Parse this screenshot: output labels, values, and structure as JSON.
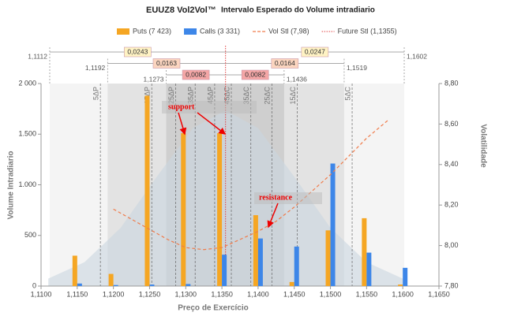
{
  "chart_data": {
    "type": "bar",
    "title": "EUUZ8 Vol2Vol™",
    "subtitle": "Intervalo Esperado do Volume intradiario",
    "x_label": "Preço de Exercício",
    "y_label": "Volume Intradiario",
    "y2_label": "Volatilidade",
    "categories": [
      1.115,
      1.12,
      1.125,
      1.13,
      1.135,
      1.14,
      1.145,
      1.15,
      1.155,
      1.16
    ],
    "series": [
      {
        "name": "Puts (7 423)",
        "color": "#f5a623",
        "values": [
          300,
          120,
          1880,
          1510,
          1510,
          700,
          40,
          550,
          670,
          15
        ]
      },
      {
        "name": "Calls (3 331)",
        "color": "#3d86e8",
        "values": [
          25,
          10,
          15,
          20,
          310,
          470,
          390,
          1210,
          330,
          180
        ]
      }
    ],
    "vol": {
      "name": "Vol Stl (7,98)",
      "color": "#f07b4a",
      "axis": "y2",
      "x": [
        1.12,
        1.1225,
        1.125,
        1.1275,
        1.13,
        1.1325,
        1.135,
        1.1375,
        1.14,
        1.1425,
        1.145,
        1.1475,
        1.15,
        1.1525,
        1.155,
        1.158
      ],
      "values": [
        8.18,
        8.13,
        8.08,
        8.03,
        7.99,
        7.98,
        7.99,
        8.03,
        8.07,
        8.12,
        8.19,
        8.27,
        8.35,
        8.44,
        8.53,
        8.62
      ]
    },
    "future": {
      "name": "Future Stl (1,1355)",
      "color": "#e04040",
      "value": 1.1355
    },
    "distribution": {
      "color": "#c9d6e0",
      "x": [
        1.111,
        1.116,
        1.121,
        1.126,
        1.131,
        1.1355,
        1.14,
        1.145,
        1.15,
        1.155,
        1.16
      ],
      "values": [
        74,
        235,
        575,
        1080,
        1560,
        1735,
        1560,
        1080,
        575,
        235,
        74
      ]
    },
    "ranges": [
      {
        "color": "#fff3c4",
        "low": {
          "value": 1.1112,
          "label": "1,1112"
        },
        "high": {
          "value": 1.1602,
          "label": "1,1602"
        },
        "left": {
          "value": 0.0243,
          "label": "0,0243"
        },
        "right": {
          "value": 0.0247,
          "label": "0,0247"
        }
      },
      {
        "color": "#fbd5bf",
        "low": {
          "value": 1.1192,
          "label": "1,1192"
        },
        "high": {
          "value": 1.1519,
          "label": "1,1519"
        },
        "left": {
          "value": 0.0163,
          "label": "0,0163"
        },
        "right": {
          "value": 0.0164,
          "label": "0,0164"
        }
      },
      {
        "color": "#f4a6a6",
        "low": {
          "value": 1.1273,
          "label": "1,1273"
        },
        "high": {
          "value": 1.1436,
          "label": "1,1436"
        },
        "left": {
          "value": 0.0082,
          "label": "0,0082"
        },
        "right": {
          "value": 0.0082,
          "label": "0,0082"
        }
      }
    ],
    "deltas": [
      {
        "label": "5ΔP",
        "x": 1.1182
      },
      {
        "label": "15ΔP",
        "x": 1.1253
      },
      {
        "label": "25ΔP",
        "x": 1.1286
      },
      {
        "label": "35ΔP",
        "x": 1.1313
      },
      {
        "label": "45ΔP",
        "x": 1.134
      },
      {
        "label": "45ΔC",
        "x": 1.1363
      },
      {
        "label": "35ΔC",
        "x": 1.139
      },
      {
        "label": "25ΔC",
        "x": 1.1419
      },
      {
        "label": "15ΔC",
        "x": 1.1454
      },
      {
        "label": "5ΔC",
        "x": 1.153
      }
    ],
    "annotations": [
      "support",
      "resistance"
    ],
    "xlim": [
      1.11,
      1.165
    ],
    "xticks": [
      {
        "value": 1.11,
        "label": "1,1100"
      },
      {
        "value": 1.115,
        "label": "1,1150"
      },
      {
        "value": 1.12,
        "label": "1,1200"
      },
      {
        "value": 1.125,
        "label": "1,1250"
      },
      {
        "value": 1.13,
        "label": "1,1300"
      },
      {
        "value": 1.135,
        "label": "1,1350"
      },
      {
        "value": 1.14,
        "label": "1,1400"
      },
      {
        "value": 1.145,
        "label": "1,1450"
      },
      {
        "value": 1.15,
        "label": "1,1500"
      },
      {
        "value": 1.155,
        "label": "1,1550"
      },
      {
        "value": 1.16,
        "label": "1,1600"
      },
      {
        "value": 1.165,
        "label": "1,1650"
      }
    ],
    "ylim": [
      0,
      2000
    ],
    "yticks": [
      0,
      500,
      {
        "value": 1000,
        "label": "1.000"
      },
      {
        "value": 1500,
        "label": "1.500"
      },
      {
        "value": 2000,
        "label": "2 000"
      }
    ],
    "y2lim": [
      7.8,
      8.8
    ],
    "y2ticks": [
      {
        "value": 7.8,
        "label": "7,80"
      },
      {
        "value": 8.0,
        "label": "8,00"
      },
      {
        "value": 8.2,
        "label": "8,20"
      },
      {
        "value": 8.4,
        "label": "8,40"
      },
      {
        "value": 8.6,
        "label": "8,60"
      },
      {
        "value": 8.8,
        "label": "8,80"
      }
    ]
  }
}
